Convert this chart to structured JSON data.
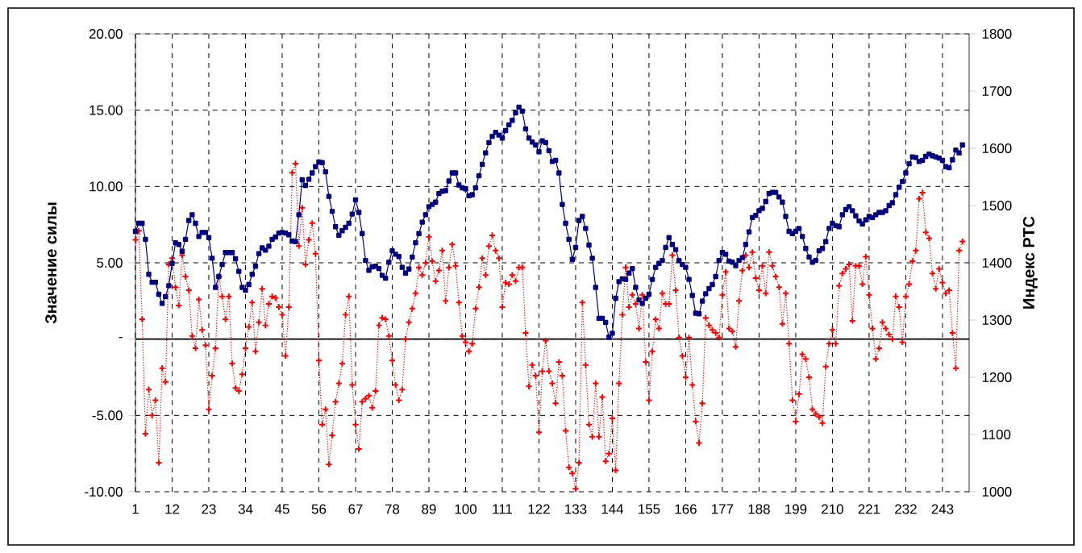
{
  "chart_data": {
    "type": "line",
    "ylabel": "Значение силы",
    "y2label": "Индекс РТС",
    "categories": [
      "1",
      null,
      null,
      null,
      null,
      null,
      null,
      null,
      null,
      null,
      null,
      "12",
      null,
      null,
      null,
      null,
      null,
      null,
      null,
      null,
      null,
      null,
      "23",
      null,
      null,
      null,
      null,
      null,
      null,
      null,
      null,
      null,
      null,
      "34",
      null,
      null,
      null,
      null,
      null,
      null,
      null,
      null,
      null,
      null,
      "45",
      null,
      null,
      null,
      null,
      null,
      null,
      null,
      null,
      null,
      null,
      "56",
      null,
      null,
      null,
      null,
      null,
      null,
      null,
      null,
      null,
      null,
      "67",
      null,
      null,
      null,
      null,
      null,
      null,
      null,
      null,
      null,
      null,
      "78",
      null,
      null,
      null,
      null,
      null,
      null,
      null,
      null,
      null,
      null,
      "89",
      null,
      null,
      null,
      null,
      null,
      null,
      null,
      null,
      null,
      null,
      "100",
      null,
      null,
      null,
      null,
      null,
      null,
      null,
      null,
      null,
      null,
      "111",
      null,
      null,
      null,
      null,
      null,
      null,
      null,
      null,
      null,
      null,
      "122",
      null,
      null,
      null,
      null,
      null,
      null,
      null,
      null,
      null,
      null,
      "133",
      null,
      null,
      null,
      null,
      null,
      null,
      null,
      null,
      null,
      null,
      "144",
      null,
      null,
      null,
      null,
      null,
      null,
      null,
      null,
      null,
      null,
      "155",
      null,
      null,
      null,
      null,
      null,
      null,
      null,
      null,
      null,
      null,
      "166",
      null,
      null,
      null,
      null,
      null,
      null,
      null,
      null,
      null,
      null,
      "177",
      null,
      null,
      null,
      null,
      null,
      null,
      null,
      null,
      null,
      null,
      "188",
      null,
      null,
      null,
      null,
      null,
      null,
      null,
      null,
      null,
      null,
      "199",
      null,
      null,
      null,
      null,
      null,
      null,
      null,
      null,
      null,
      null,
      "210",
      null,
      null,
      null,
      null,
      null,
      null,
      null,
      null,
      null,
      null,
      "221",
      null,
      null,
      null,
      null,
      null,
      null,
      null,
      null,
      null,
      null,
      "232",
      null,
      null,
      null,
      null,
      null,
      null,
      null,
      null,
      null,
      null,
      "243",
      null,
      null,
      null,
      null,
      null,
      null
    ],
    "series": [
      {
        "color": "#ff0000",
        "marker": "cross",
        "line_style": "dotted",
        "values": [
          6.5,
          7.1,
          1.3,
          -6.2,
          -3.3,
          -5.0,
          -4.0,
          -8.1,
          -1.9,
          -2.8,
          4.9,
          5.3,
          3.4,
          2.2,
          5.5,
          4.1,
          3.2,
          0.2,
          -0.6,
          2.6,
          0.6,
          -0.4,
          -4.6,
          -2.4,
          -0.6,
          4.1,
          2.8,
          1.3,
          2.8,
          -1.6,
          -3.2,
          -3.4,
          -2.3,
          -0.6,
          0.8,
          2.4,
          -0.8,
          1.1,
          3.3,
          0.9,
          2.3,
          2.8,
          2.7,
          2.1,
          1.6,
          -1.1,
          2.1,
          10.9,
          11.5,
          6.1,
          8.6,
          4.9,
          6.5,
          7.6,
          5.6,
          -1.4,
          -5.6,
          -4.6,
          -8.2,
          -6.3,
          -4.1,
          -2.9,
          -1.6,
          1.6,
          2.8,
          -3.0,
          -5.6,
          -7.2,
          -4.1,
          -3.9,
          -3.7,
          -4.5,
          -3.4,
          0.9,
          1.4,
          1.3,
          0.2,
          -1.4,
          -3.0,
          -4.0,
          -3.3,
          0.0,
          1.1,
          2.0,
          3.0,
          4.7,
          4.2,
          5.0,
          6.7,
          5.1,
          3.8,
          4.5,
          5.8,
          2.5,
          4.7,
          6.2,
          4.8,
          2.4,
          0.2,
          -0.2,
          -0.8,
          -0.3,
          2.0,
          3.4,
          5.3,
          4.2,
          6.1,
          6.8,
          5.8,
          5.3,
          2.1,
          3.7,
          3.6,
          4.2,
          3.8,
          4.7,
          4.7,
          0.4,
          -3.1,
          -1.7,
          -2.4,
          -6.1,
          -2.1,
          -0.1,
          -2.1,
          -2.9,
          -4.2,
          -1.5,
          -2.4,
          -6.0,
          -8.4,
          -8.8,
          -9.8,
          -8.1,
          2.4,
          -1.7,
          -5.6,
          -6.4,
          -2.9,
          -6.4,
          -3.8,
          -8.0,
          -7.5,
          -5.2,
          -8.6,
          -2.9,
          1.6,
          4.7,
          2.1,
          2.9,
          2.3,
          0.7,
          2.9,
          -1.5,
          -4.0,
          -0.8,
          1.3,
          0.7,
          3.0,
          2.3,
          2.3,
          5.5,
          3.2,
          0.1,
          -1.1,
          -2.5,
          0.1,
          -3.0,
          -5.4,
          -6.8,
          -4.2,
          1.4,
          0.9,
          0.6,
          0.4,
          0.1,
          2.9,
          4.4,
          0.7,
          0.5,
          -0.5,
          2.5,
          4.5,
          5.5,
          4.7,
          5.7,
          4.0,
          3.2,
          4.8,
          3.0,
          5.7,
          4.8,
          4.1,
          3.4,
          1.0,
          3.0,
          -0.3,
          -4.0,
          -5.4,
          -3.6,
          -1.0,
          -1.3,
          -2.5,
          -4.6,
          -4.9,
          -5.1,
          -5.5,
          -1.8,
          -0.3,
          0.6,
          -0.3,
          3.5,
          4.3,
          4.6,
          4.9,
          1.2,
          4.8,
          4.8,
          3.6,
          5.4,
          2.9,
          0.7,
          -1.3,
          -0.6,
          1.1,
          0.7,
          0.3,
          0.0,
          2.8,
          2.1,
          -0.2,
          2.8,
          3.6,
          5.1,
          5.8,
          9.2,
          9.6,
          7.0,
          6.6,
          4.3,
          3.3,
          4.6,
          3.7,
          3.0,
          3.2,
          0.4,
          -1.9,
          5.8,
          6.4
        ]
      },
      {
        "color": "#000080",
        "marker": "square",
        "line_style": "solid",
        "axis": "y2",
        "values": [
          1455,
          1469,
          1469,
          1441,
          1380,
          1366,
          1366,
          1345,
          1329,
          1341,
          1360,
          1399,
          1435,
          1432,
          1420,
          1441,
          1474,
          1484,
          1469,
          1446,
          1453,
          1453,
          1444,
          1408,
          1357,
          1376,
          1397,
          1418,
          1418,
          1418,
          1407,
          1385,
          1357,
          1352,
          1362,
          1380,
          1394,
          1416,
          1426,
          1422,
          1429,
          1441,
          1445,
          1452,
          1453,
          1452,
          1449,
          1438,
          1437,
          1484,
          1545,
          1535,
          1546,
          1557,
          1568,
          1576,
          1575,
          1559,
          1516,
          1490,
          1463,
          1448,
          1456,
          1462,
          1469,
          1485,
          1510,
          1488,
          1451,
          1404,
          1387,
          1393,
          1394,
          1390,
          1378,
          1373,
          1401,
          1421,
          1415,
          1411,
          1392,
          1382,
          1389,
          1410,
          1435,
          1451,
          1471,
          1484,
          1498,
          1502,
          1506,
          1521,
          1525,
          1526,
          1543,
          1557,
          1557,
          1536,
          1531,
          1529,
          1517,
          1519,
          1531,
          1552,
          1572,
          1592,
          1610,
          1621,
          1628,
          1623,
          1618,
          1631,
          1641,
          1649,
          1662,
          1672,
          1665,
          1634,
          1618,
          1611,
          1606,
          1594,
          1613,
          1610,
          1596,
          1577,
          1579,
          1557,
          1502,
          1469,
          1441,
          1406,
          1427,
          1474,
          1481,
          1460,
          1431,
          1408,
          1357,
          1303,
          1303,
          1296,
          1270,
          1277,
          1338,
          1367,
          1372,
          1371,
          1382,
          1390,
          1357,
          1335,
          1329,
          1338,
          1345,
          1371,
          1392,
          1399,
          1404,
          1427,
          1444,
          1432,
          1423,
          1404,
          1397,
          1392,
          1371,
          1343,
          1312,
          1311,
          1333,
          1346,
          1355,
          1362,
          1376,
          1404,
          1418,
          1415,
          1403,
          1401,
          1395,
          1404,
          1409,
          1432,
          1454,
          1479,
          1483,
          1491,
          1495,
          1507,
          1521,
          1523,
          1523,
          1515,
          1506,
          1481,
          1455,
          1451,
          1455,
          1460,
          1446,
          1425,
          1410,
          1401,
          1404,
          1421,
          1425,
          1437,
          1460,
          1469,
          1465,
          1463,
          1484,
          1493,
          1498,
          1491,
          1482,
          1473,
          1468,
          1475,
          1481,
          1479,
          1484,
          1488,
          1488,
          1491,
          1500,
          1505,
          1519,
          1532,
          1542,
          1557,
          1573,
          1585,
          1584,
          1577,
          1579,
          1586,
          1590,
          1587,
          1585,
          1583,
          1579,
          1568,
          1566,
          1580,
          1597,
          1592,
          1606
        ]
      }
    ],
    "ylim": [
      -10,
      20
    ],
    "yticks": [
      {
        "value": -10,
        "label": "-10.00"
      },
      {
        "value": -5,
        "label": "-5.00"
      },
      {
        "value": 0,
        "label": "-"
      },
      {
        "value": 5,
        "label": "5.00"
      },
      {
        "value": 10,
        "label": "10.00"
      },
      {
        "value": 15,
        "label": "15.00"
      },
      {
        "value": 20,
        "label": "20.00"
      }
    ],
    "y2lim": [
      1000,
      1800
    ],
    "y2ticks": [
      1000,
      1100,
      1200,
      1300,
      1400,
      1500,
      1600,
      1700,
      1800
    ],
    "grid": true
  }
}
